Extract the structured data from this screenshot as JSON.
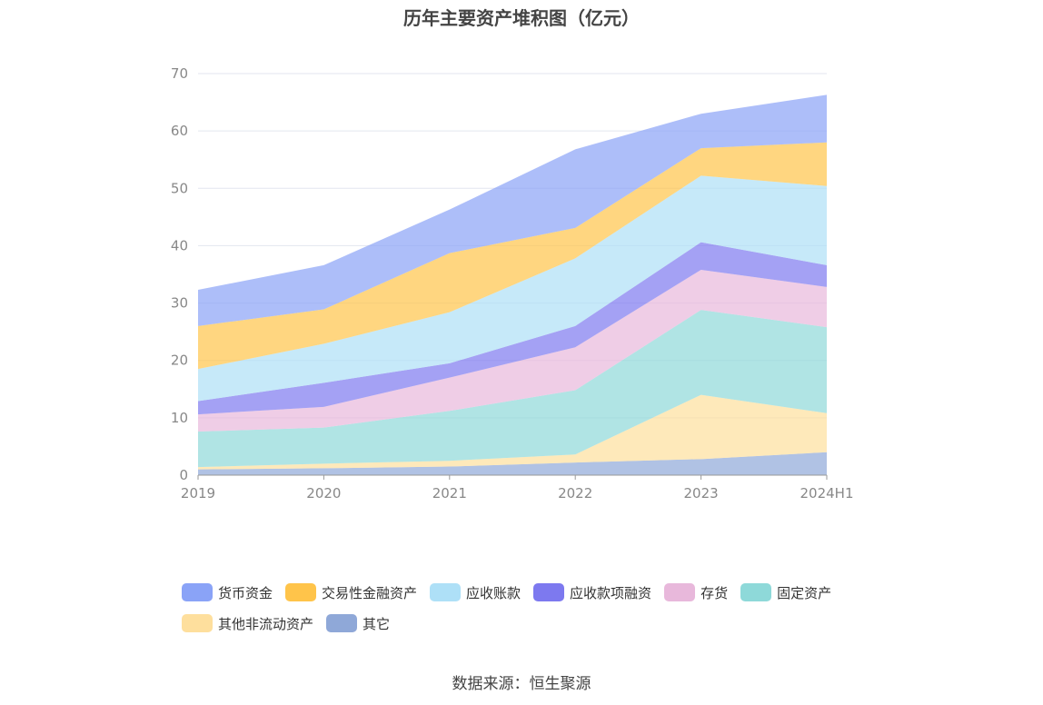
{
  "page": {
    "title": "历年主要资产堆积图（亿元）",
    "source": "数据来源：恒生聚源"
  },
  "chart_data": {
    "type": "area",
    "stacked": true,
    "title": "历年主要资产堆积图（亿元）",
    "categories": [
      "2019",
      "2020",
      "2021",
      "2022",
      "2023",
      "2024H1"
    ],
    "ylim": [
      0,
      70
    ],
    "yticks": [
      0,
      10,
      20,
      30,
      40,
      50,
      60,
      70
    ],
    "grid": true,
    "legend_position": "bottom",
    "series": [
      {
        "name": "其它",
        "color": "#8fa8d8",
        "values": [
          1.0,
          1.2,
          1.5,
          2.2,
          2.8,
          4.0
        ]
      },
      {
        "name": "其他非流动资产",
        "color": "#fedf9d",
        "values": [
          0.4,
          0.8,
          1.0,
          1.4,
          11.2,
          6.8
        ]
      },
      {
        "name": "固定资产",
        "color": "#8ed9d9",
        "values": [
          6.2,
          6.3,
          8.7,
          11.2,
          14.8,
          15.0
        ]
      },
      {
        "name": "存货",
        "color": "#e8b8db",
        "values": [
          3.0,
          3.6,
          5.8,
          7.5,
          7.0,
          7.0
        ]
      },
      {
        "name": "应收款项融资",
        "color": "#7d79ef",
        "values": [
          2.3,
          4.2,
          2.5,
          3.7,
          4.8,
          3.8
        ]
      },
      {
        "name": "应收账款",
        "color": "#aee0f7",
        "values": [
          5.6,
          6.8,
          8.9,
          11.8,
          11.6,
          13.8
        ]
      },
      {
        "name": "交易性金融资产",
        "color": "#ffc44a",
        "values": [
          7.5,
          6.0,
          10.3,
          5.3,
          4.8,
          7.6
        ]
      },
      {
        "name": "货币资金",
        "color": "#8aa3f7",
        "values": [
          6.3,
          7.7,
          7.6,
          13.7,
          6.0,
          8.3
        ]
      }
    ],
    "legend_order": [
      "货币资金",
      "交易性金融资产",
      "应收账款",
      "应收款项融资",
      "存货",
      "固定资产",
      "其他非流动资产",
      "其它"
    ]
  }
}
